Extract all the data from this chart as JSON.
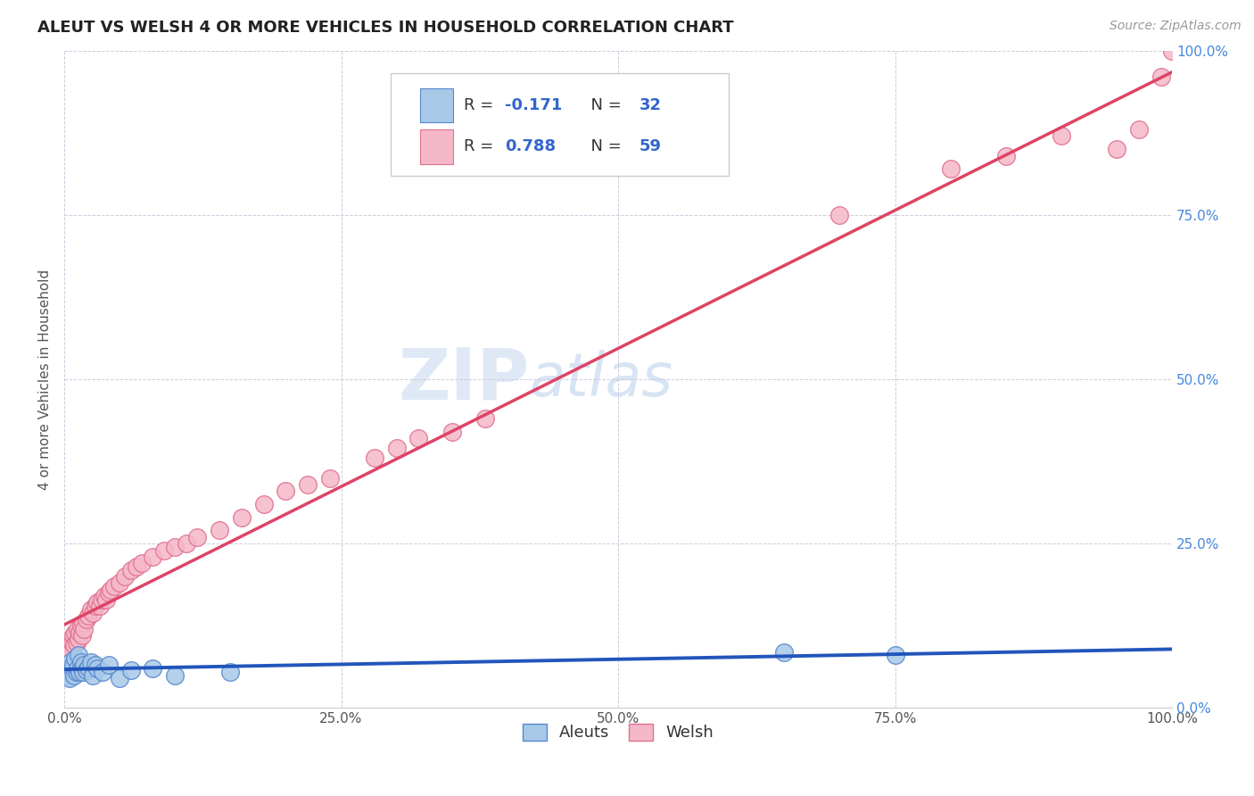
{
  "title": "ALEUT VS WELSH 4 OR MORE VEHICLES IN HOUSEHOLD CORRELATION CHART",
  "source": "Source: ZipAtlas.com",
  "ylabel": "4 or more Vehicles in Household",
  "xlim": [
    0,
    1.0
  ],
  "ylim": [
    0,
    1.0
  ],
  "aleuts_color": "#A8C8E8",
  "welsh_color": "#F5B8C8",
  "aleuts_edge_color": "#5588CC",
  "welsh_edge_color": "#E07090",
  "aleuts_line_color": "#2255BB",
  "welsh_line_color": "#DD4466",
  "legend_R_aleuts": "-0.171",
  "legend_N_aleuts": "32",
  "legend_R_welsh": "0.788",
  "legend_N_welsh": "59",
  "watermark_zip": "ZIP",
  "watermark_atlas": "atlas",
  "background_color": "#FFFFFF",
  "grid_color": "#CCCCDD",
  "title_color": "#222222",
  "source_color": "#999999",
  "ylabel_color": "#555555",
  "yticklabel_color": "#4488DD",
  "xticklabel_color": "#555555",
  "aleuts_x": [
    0.002,
    0.003,
    0.004,
    0.005,
    0.006,
    0.007,
    0.008,
    0.009,
    0.01,
    0.011,
    0.012,
    0.013,
    0.014,
    0.015,
    0.016,
    0.017,
    0.018,
    0.02,
    0.022,
    0.024,
    0.026,
    0.028,
    0.03,
    0.035,
    0.04,
    0.05,
    0.06,
    0.08,
    0.1,
    0.15,
    0.65,
    0.75
  ],
  "aleuts_y": [
    0.05,
    0.06,
    0.055,
    0.045,
    0.07,
    0.06,
    0.065,
    0.05,
    0.075,
    0.055,
    0.06,
    0.08,
    0.055,
    0.07,
    0.06,
    0.055,
    0.065,
    0.058,
    0.062,
    0.07,
    0.05,
    0.065,
    0.06,
    0.055,
    0.065,
    0.045,
    0.058,
    0.06,
    0.05,
    0.055,
    0.085,
    0.08
  ],
  "welsh_x": [
    0.002,
    0.003,
    0.004,
    0.005,
    0.006,
    0.007,
    0.008,
    0.009,
    0.01,
    0.011,
    0.012,
    0.013,
    0.014,
    0.015,
    0.016,
    0.017,
    0.018,
    0.02,
    0.022,
    0.024,
    0.026,
    0.028,
    0.03,
    0.032,
    0.034,
    0.036,
    0.038,
    0.04,
    0.042,
    0.045,
    0.05,
    0.055,
    0.06,
    0.065,
    0.07,
    0.08,
    0.09,
    0.1,
    0.11,
    0.12,
    0.14,
    0.16,
    0.18,
    0.2,
    0.22,
    0.24,
    0.28,
    0.3,
    0.32,
    0.35,
    0.38,
    0.7,
    0.8,
    0.85,
    0.9,
    0.95,
    0.97,
    0.99,
    1.0
  ],
  "welsh_y": [
    0.075,
    0.065,
    0.08,
    0.09,
    0.085,
    0.1,
    0.11,
    0.095,
    0.115,
    0.1,
    0.12,
    0.105,
    0.115,
    0.125,
    0.11,
    0.13,
    0.12,
    0.135,
    0.14,
    0.15,
    0.145,
    0.155,
    0.16,
    0.155,
    0.165,
    0.17,
    0.165,
    0.175,
    0.18,
    0.185,
    0.19,
    0.2,
    0.21,
    0.215,
    0.22,
    0.23,
    0.24,
    0.245,
    0.25,
    0.26,
    0.27,
    0.29,
    0.31,
    0.33,
    0.34,
    0.35,
    0.38,
    0.395,
    0.41,
    0.42,
    0.44,
    0.75,
    0.82,
    0.84,
    0.87,
    0.85,
    0.88,
    0.96,
    1.0
  ]
}
